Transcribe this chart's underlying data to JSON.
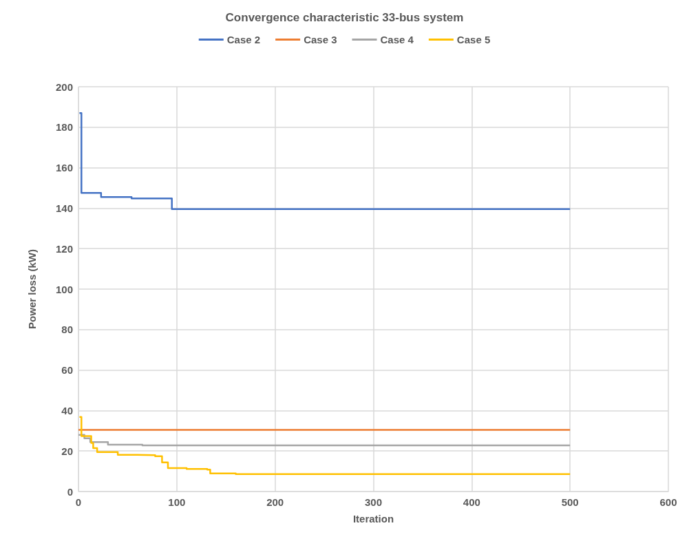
{
  "chart_data": {
    "type": "step",
    "title": "Convergence characteristic 33-bus system",
    "xlabel": "Iteration",
    "ylabel": "Power loss (kW)",
    "xlim": [
      0,
      600
    ],
    "xticks": [
      0,
      100,
      200,
      300,
      400,
      500,
      600
    ],
    "ylim": [
      0,
      200
    ],
    "yticks": [
      0,
      20,
      40,
      60,
      80,
      100,
      120,
      140,
      160,
      180,
      200
    ],
    "grid": true,
    "legend": "top",
    "marker": "none",
    "line_style": "solid",
    "series": [
      {
        "name": "Case 2",
        "color": "#4472c4",
        "x": [
          1,
          3,
          23,
          54,
          95,
          500
        ],
        "values": [
          187,
          147.5,
          145.5,
          144.8,
          139.5,
          139.5
        ]
      },
      {
        "name": "Case 3",
        "color": "#ed7d31",
        "x": [
          0,
          500
        ],
        "values": [
          30.4,
          30.4
        ]
      },
      {
        "name": "Case 4",
        "color": "#a5a5a5",
        "x": [
          0,
          6,
          12,
          30,
          65,
          500
        ],
        "values": [
          28,
          26.3,
          24.4,
          23.1,
          22.8,
          22.8
        ]
      },
      {
        "name": "Case 5",
        "color": "#ffc000",
        "x": [
          1,
          3,
          13,
          15,
          19,
          40,
          60,
          78,
          85,
          91,
          110,
          131,
          134,
          160,
          500
        ],
        "values": [
          36.8,
          27.4,
          24,
          21.4,
          19.5,
          18.1,
          17.9,
          17.4,
          14.4,
          11.6,
          11.1,
          10.8,
          8.9,
          8.6,
          8.6
        ]
      }
    ]
  }
}
